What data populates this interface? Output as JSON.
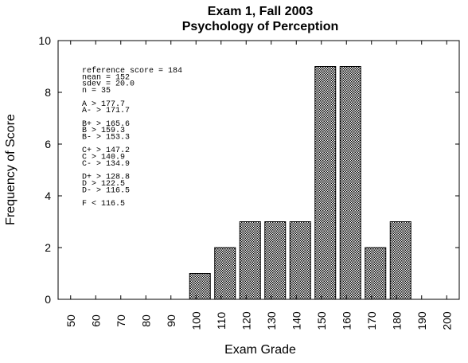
{
  "chart_data": {
    "type": "bar",
    "title": "Exam 1,  Fall 2003",
    "subtitle": "Psychology of Perception",
    "xlabel": "Exam Grade",
    "ylabel": "Frequency of Score",
    "xlim": [
      45,
      205
    ],
    "ylim": [
      0,
      10
    ],
    "x_ticks": [
      "50",
      "60",
      "70",
      "80",
      "90",
      "100",
      "110",
      "120",
      "130",
      "140",
      "150",
      "160",
      "170",
      "180",
      "190",
      "200"
    ],
    "y_ticks": [
      "0",
      "2",
      "4",
      "6",
      "8",
      "10"
    ],
    "bins": [
      100,
      110,
      120,
      130,
      140,
      150,
      160,
      170,
      180
    ],
    "values": [
      1,
      2,
      3,
      3,
      3,
      9,
      9,
      2,
      3
    ],
    "grid": false,
    "stats_lines": [
      "reference score = 184",
      "nean = 152",
      "sdev = 20.0",
      "n = 35",
      "",
      "A  > 177.7",
      "A- > 171.7",
      "",
      "B+ > 165.6",
      "B  > 159.3",
      "B- > 153.3",
      "",
      "C+ > 147.2",
      "C  > 140.9",
      "C- > 134.9",
      "",
      "D+ > 128.8",
      "D  > 122.5",
      "D- > 116.5",
      "",
      "F  < 116.5"
    ]
  }
}
